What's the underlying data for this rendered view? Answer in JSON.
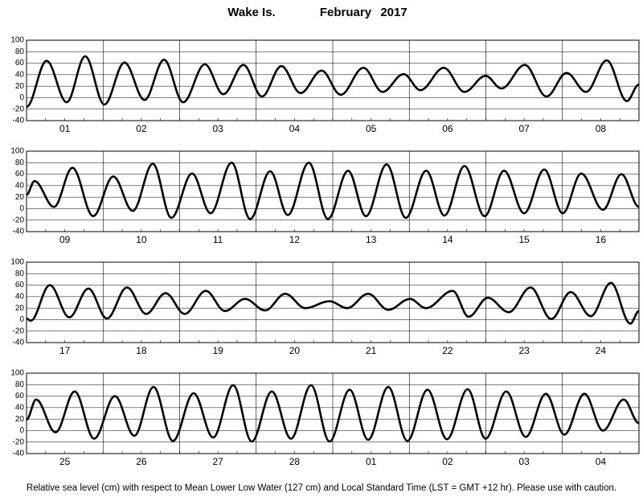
{
  "title": "Wake Is.",
  "month": "February",
  "year": "2017",
  "note": "Relative sea level (cm) with respect to Mean Lower Low Water (127 cm) and Local Standard Time (LST = GMT +12 hr). Please use with caution.",
  "chart_data": [
    {
      "type": "line",
      "color": "#000000",
      "categories": [
        "01",
        "02",
        "03",
        "04",
        "05",
        "06",
        "07",
        "08"
      ],
      "xlim": [
        0,
        192
      ],
      "ylim": [
        -40,
        100
      ],
      "yticks": [
        -40,
        -20,
        0,
        20,
        40,
        60,
        80,
        100
      ],
      "grid": true,
      "x": [
        0,
        6.3,
        12.6,
        18.4,
        24.4,
        30.7,
        37.0,
        43.1,
        49.1,
        55.9,
        61.7,
        68.0,
        73.8,
        79.9,
        85.9,
        92.5,
        98.5,
        105.6,
        111.6,
        118.2,
        123.5,
        130.8,
        137.3,
        143.9,
        148.9,
        156.2,
        163.0,
        169.3,
        175.4,
        181.9,
        188.2,
        192
      ],
      "values": [
        -16,
        64,
        -8,
        72,
        -12,
        61,
        -4,
        66,
        -8,
        58,
        6,
        57,
        2,
        55,
        8,
        47,
        5,
        52,
        10,
        41,
        13,
        52,
        10,
        38,
        16,
        57,
        2,
        43,
        10,
        65,
        -6,
        23
      ]
    },
    {
      "type": "line",
      "color": "#000000",
      "categories": [
        "09",
        "10",
        "11",
        "12",
        "13",
        "14",
        "15",
        "16"
      ],
      "xlim": [
        0,
        192
      ],
      "ylim": [
        -40,
        100
      ],
      "yticks": [
        -40,
        -20,
        0,
        20,
        40,
        60,
        80,
        100
      ],
      "grid": true,
      "x": [
        0,
        2.5,
        8.6,
        14.4,
        20.9,
        27.2,
        33.3,
        39.6,
        45.4,
        51.9,
        57.7,
        64.3,
        70.1,
        76.4,
        81.9,
        88.5,
        94.5,
        100.8,
        106.4,
        112.9,
        118.9,
        125.3,
        131.0,
        137.3,
        143.6,
        149.7,
        156.0,
        162.3,
        168.1,
        173.9,
        180.7,
        186.5,
        192
      ],
      "values": [
        24,
        48,
        3,
        71,
        -13,
        56,
        -4,
        78,
        -16,
        61,
        -8,
        80,
        -18,
        65,
        -11,
        80,
        -18,
        66,
        -13,
        77,
        -16,
        66,
        -12,
        74,
        -13,
        66,
        -8,
        68,
        -8,
        61,
        -2,
        60,
        3
      ]
    },
    {
      "type": "line",
      "color": "#000000",
      "categories": [
        "17",
        "18",
        "19",
        "20",
        "21",
        "22",
        "23",
        "24"
      ],
      "xlim": [
        0,
        192
      ],
      "ylim": [
        -40,
        100
      ],
      "yticks": [
        -40,
        -20,
        0,
        20,
        40,
        60,
        80,
        100
      ],
      "grid": true,
      "x": [
        0,
        1.3,
        7.3,
        13.4,
        19.4,
        25.2,
        31.5,
        37.5,
        43.6,
        49.6,
        56.2,
        62.2,
        68.5,
        74.8,
        81.1,
        87.4,
        95.0,
        100.5,
        107.1,
        113.4,
        120.2,
        125.2,
        133.6,
        138.6,
        144.6,
        151.2,
        158.0,
        164.5,
        170.6,
        176.9,
        183.2,
        189.3,
        192
      ],
      "values": [
        2,
        -2,
        60,
        4,
        54,
        2,
        56,
        10,
        46,
        10,
        50,
        15,
        36,
        16,
        45,
        20,
        32,
        20,
        45,
        17,
        36,
        20,
        50,
        5,
        38,
        13,
        56,
        1,
        48,
        6,
        64,
        -7,
        15
      ]
    },
    {
      "type": "line",
      "color": "#000000",
      "categories": [
        "25",
        "26",
        "27",
        "28",
        "01",
        "02",
        "03",
        "04"
      ],
      "xlim": [
        0,
        192
      ],
      "ylim": [
        -40,
        100
      ],
      "yticks": [
        -40,
        -20,
        0,
        20,
        40,
        60,
        80,
        100
      ],
      "grid": true,
      "x": [
        0,
        3.0,
        9.1,
        15.1,
        21.2,
        27.7,
        33.8,
        39.8,
        45.9,
        52.4,
        58.5,
        64.8,
        70.6,
        76.9,
        82.9,
        89.2,
        95.0,
        101.3,
        107.1,
        113.4,
        119.4,
        125.7,
        131.8,
        138.3,
        143.9,
        150.4,
        156.5,
        162.8,
        168.6,
        174.9,
        180.7,
        187.2,
        192
      ],
      "values": [
        19,
        54,
        -3,
        68,
        -14,
        60,
        -9,
        76,
        -18,
        65,
        -12,
        79,
        -19,
        68,
        -14,
        79,
        -19,
        71,
        -16,
        76,
        -18,
        71,
        -15,
        72,
        -14,
        68,
        -11,
        64,
        -7,
        64,
        0,
        54,
        13
      ]
    }
  ]
}
